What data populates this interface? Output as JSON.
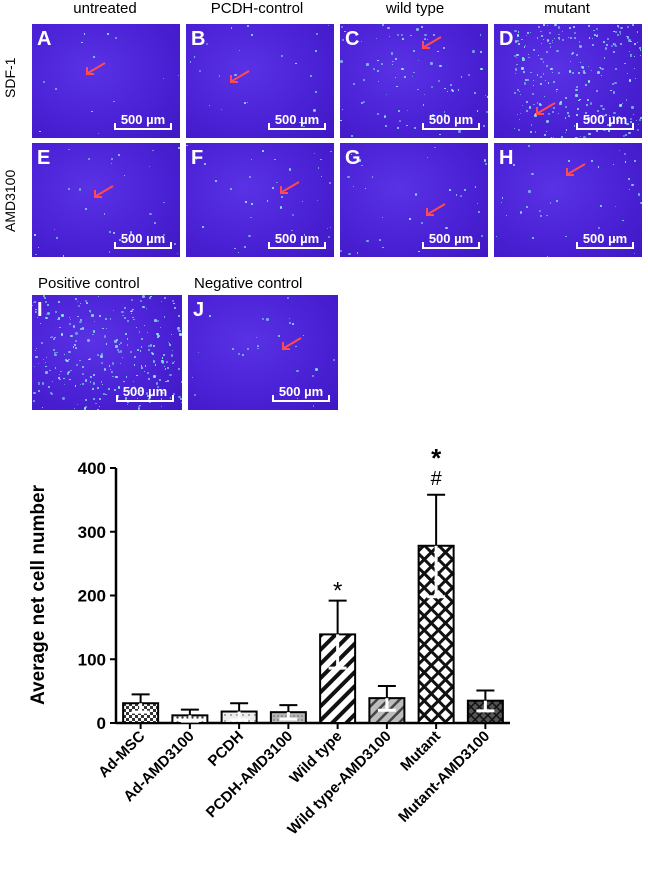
{
  "column_labels": [
    "untreated",
    "PCDH-control",
    "wild type",
    "mutant"
  ],
  "row_labels": [
    "SDF-1",
    "AMD3100"
  ],
  "control_labels": [
    "Positive control",
    "Negative control"
  ],
  "panels": [
    {
      "letter": "A",
      "density": 0.05
    },
    {
      "letter": "B",
      "density": 0.1
    },
    {
      "letter": "C",
      "density": 0.35
    },
    {
      "letter": "D",
      "density": 1.0
    },
    {
      "letter": "E",
      "density": 0.12
    },
    {
      "letter": "F",
      "density": 0.15
    },
    {
      "letter": "G",
      "density": 0.12
    },
    {
      "letter": "H",
      "density": 0.15
    },
    {
      "letter": "I",
      "density": 1.1
    },
    {
      "letter": "J",
      "density": 0.1
    }
  ],
  "scale_bar_label": "500 µm",
  "colors": {
    "panel_bg": "#4b22d6",
    "cell": "#8ff5f0",
    "arrow": "#ff4b4b"
  },
  "chart_data": {
    "type": "bar",
    "ylabel": "Average net cell number",
    "ylim": [
      0,
      400
    ],
    "yticks": [
      0,
      100,
      200,
      300,
      400
    ],
    "categories": [
      "Ad-MSC",
      "Ad-AMD3100",
      "PCDH",
      "PCDH-AMD3100",
      "Wild type",
      "Wild type-AMD3100",
      "Mutant",
      "Mutant-AMD3100"
    ],
    "values": [
      31,
      12,
      18,
      17,
      139,
      39,
      278,
      35
    ],
    "errors": [
      14,
      9,
      13,
      11,
      53,
      19,
      80,
      16
    ],
    "patterns": [
      "checker",
      "dots",
      "light",
      "grey",
      "diag",
      "grey-diag",
      "crosshatch",
      "dark-cross"
    ],
    "annotations": [
      {
        "category": "Wild type",
        "text": "*"
      },
      {
        "category": "Mutant",
        "text": "#"
      },
      {
        "category": "Mutant",
        "text": "*"
      }
    ]
  }
}
